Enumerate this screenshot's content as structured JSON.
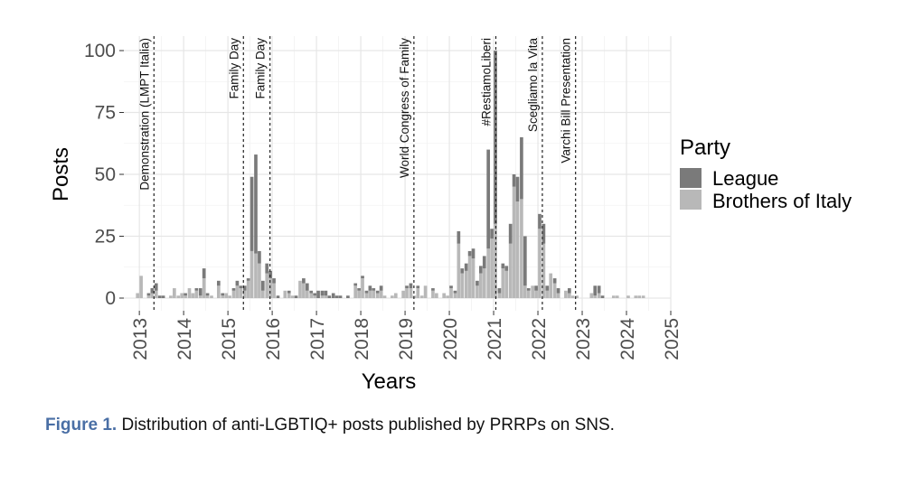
{
  "chart_data": {
    "type": "bar",
    "stacked": true,
    "xlabel": "Years",
    "ylabel": "Posts",
    "ylim": [
      0,
      100
    ],
    "xlim": [
      2012.65,
      2025.0
    ],
    "yticks": [
      0,
      25,
      50,
      75,
      100
    ],
    "xticks": [
      2013,
      2014,
      2015,
      2016,
      2017,
      2018,
      2019,
      2020,
      2021,
      2022,
      2023,
      2024,
      2025
    ],
    "legend_title": "Party",
    "legend_position": "right",
    "series": [
      {
        "name": "League",
        "color": "#7a7a7a"
      },
      {
        "name": "Brothers of Italy",
        "color": "#b8b8b8"
      }
    ],
    "x": [
      2012.96,
      2013.04,
      2013.21,
      2013.29,
      2013.38,
      2013.46,
      2013.54,
      2013.63,
      2013.71,
      2013.79,
      2013.88,
      2013.96,
      2014.04,
      2014.13,
      2014.21,
      2014.29,
      2014.38,
      2014.46,
      2014.54,
      2014.63,
      2014.71,
      2014.79,
      2014.88,
      2014.96,
      2015.04,
      2015.13,
      2015.21,
      2015.29,
      2015.38,
      2015.46,
      2015.54,
      2015.63,
      2015.71,
      2015.79,
      2015.88,
      2015.96,
      2016.04,
      2016.13,
      2016.21,
      2016.29,
      2016.38,
      2016.46,
      2016.54,
      2016.63,
      2016.71,
      2016.79,
      2016.88,
      2016.96,
      2017.04,
      2017.13,
      2017.21,
      2017.29,
      2017.38,
      2017.46,
      2017.54,
      2017.63,
      2017.71,
      2017.79,
      2017.88,
      2017.96,
      2018.04,
      2018.13,
      2018.21,
      2018.29,
      2018.38,
      2018.46,
      2018.54,
      2018.63,
      2018.71,
      2018.79,
      2018.88,
      2018.96,
      2019.04,
      2019.13,
      2019.21,
      2019.29,
      2019.38,
      2019.46,
      2019.54,
      2019.63,
      2019.71,
      2019.79,
      2019.88,
      2019.96,
      2020.04,
      2020.13,
      2020.21,
      2020.29,
      2020.38,
      2020.46,
      2020.54,
      2020.63,
      2020.71,
      2020.79,
      2020.88,
      2020.96,
      2021.04,
      2021.13,
      2021.21,
      2021.29,
      2021.38,
      2021.46,
      2021.54,
      2021.63,
      2021.71,
      2021.79,
      2021.88,
      2021.96,
      2022.04,
      2022.13,
      2022.21,
      2022.29,
      2022.38,
      2022.46,
      2022.54,
      2022.63,
      2022.71,
      2022.79,
      2022.88,
      2022.96,
      2023.04,
      2023.13,
      2023.21,
      2023.29,
      2023.38,
      2023.46,
      2023.54,
      2023.63,
      2023.71,
      2023.79,
      2023.88,
      2023.96,
      2024.04,
      2024.13,
      2024.21,
      2024.29,
      2024.38
    ],
    "league": [
      0,
      0,
      1,
      2,
      3,
      1,
      1,
      0,
      0,
      0,
      0,
      0,
      1,
      0,
      0,
      1,
      3,
      4,
      1,
      0,
      0,
      2,
      1,
      0,
      0,
      1,
      2,
      1,
      2,
      1,
      30,
      40,
      5,
      4,
      4,
      3,
      2,
      1,
      0,
      0,
      1,
      0,
      1,
      0,
      2,
      3,
      1,
      1,
      3,
      2,
      2,
      1,
      2,
      1,
      1,
      0,
      1,
      0,
      1,
      1,
      1,
      1,
      2,
      1,
      1,
      2,
      0,
      0,
      0,
      0,
      0,
      0,
      1,
      2,
      0,
      1,
      0,
      0,
      0,
      1,
      0,
      0,
      0,
      0,
      1,
      1,
      5,
      2,
      3,
      2,
      4,
      2,
      3,
      5,
      40,
      4,
      70,
      2,
      2,
      2,
      8,
      5,
      10,
      25,
      20,
      1,
      0,
      2,
      6,
      8,
      2,
      0,
      2,
      2,
      0,
      0,
      2,
      0,
      0,
      0,
      0,
      0,
      0,
      4,
      3,
      1,
      0,
      0,
      0,
      0,
      0,
      0,
      0,
      0,
      0,
      0,
      0
    ],
    "brothers": [
      2,
      9,
      1,
      2,
      3,
      0,
      0,
      0,
      1,
      4,
      1,
      2,
      1,
      4,
      2,
      3,
      1,
      8,
      1,
      1,
      0,
      5,
      1,
      2,
      1,
      3,
      5,
      4,
      3,
      7,
      19,
      18,
      14,
      3,
      10,
      8,
      6,
      0,
      0,
      3,
      2,
      1,
      0,
      7,
      6,
      3,
      2,
      1,
      0,
      1,
      1,
      0,
      0,
      0,
      0,
      0,
      0,
      0,
      5,
      3,
      8,
      2,
      3,
      3,
      2,
      3,
      1,
      0,
      1,
      2,
      0,
      3,
      4,
      4,
      1,
      4,
      1,
      5,
      0,
      3,
      2,
      0,
      2,
      1,
      4,
      2,
      22,
      10,
      11,
      17,
      16,
      5,
      10,
      12,
      20,
      24,
      30,
      2,
      12,
      11,
      22,
      45,
      39,
      40,
      5,
      3,
      5,
      3,
      28,
      22,
      3,
      10,
      6,
      2,
      0,
      3,
      2,
      1,
      1,
      0,
      0,
      0,
      2,
      1,
      2,
      0,
      0,
      0,
      1,
      1,
      0,
      0,
      1,
      0,
      1,
      1,
      1
    ],
    "events": [
      {
        "label": "Demonstration (LMPT Italia)",
        "x": 2013.33
      },
      {
        "label": "Family Day",
        "x": 2015.35
      },
      {
        "label": "Family Day",
        "x": 2015.95
      },
      {
        "label": "World Congress of Family",
        "x": 2019.2
      },
      {
        "label": "#RestiamoLiberi",
        "x": 2021.05
      },
      {
        "label": "Scegliamo la Vita",
        "x": 2022.1
      },
      {
        "label": "Varchi Bill Presentation",
        "x": 2022.85
      }
    ]
  },
  "caption": {
    "figure_label": "Figure 1.",
    "text": " Distribution of anti-LGBTIQ+ posts published by PRRPs on SNS."
  }
}
